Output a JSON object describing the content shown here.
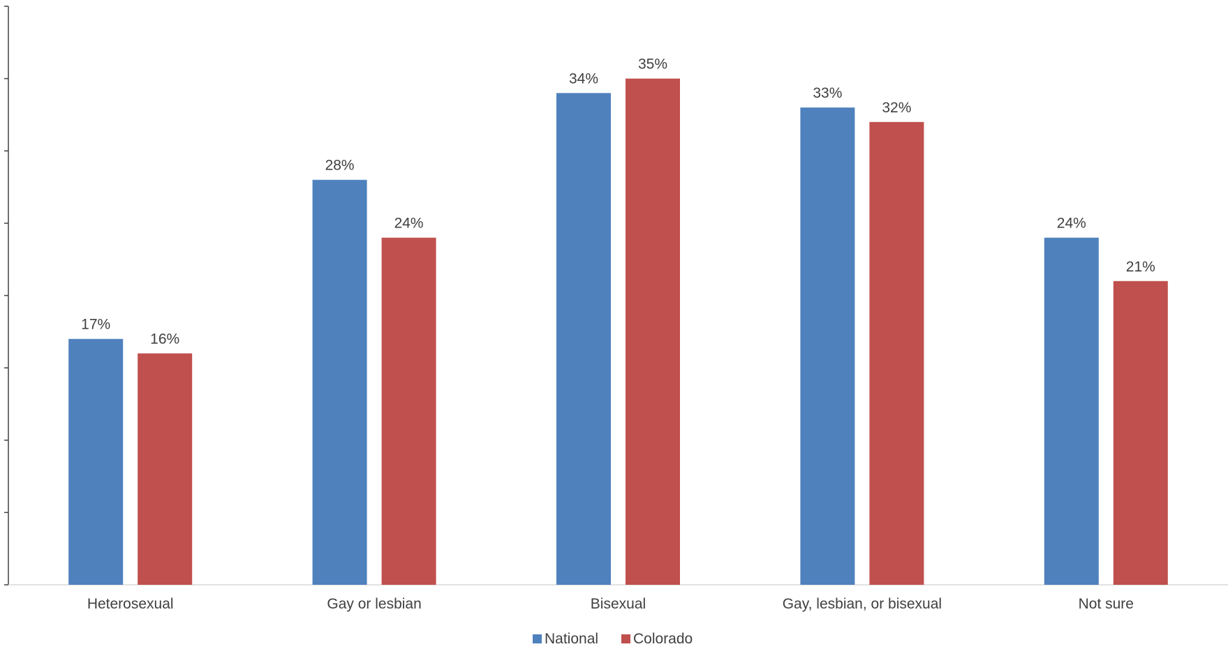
{
  "chart_data": {
    "type": "bar",
    "categories": [
      "Heterosexual",
      "Gay or lesbian",
      "Bisexual",
      "Gay, lesbian, or bisexual",
      "Not sure"
    ],
    "series": [
      {
        "name": "National",
        "values": [
          17,
          28,
          34,
          33,
          24
        ],
        "labels": [
          "17%",
          "28%",
          "34%",
          "33%",
          "24%"
        ],
        "color": "#4f81bd"
      },
      {
        "name": "Colorado",
        "values": [
          16,
          24,
          35,
          32,
          21
        ],
        "labels": [
          "16%",
          "24%",
          "35%",
          "32%",
          "21%"
        ],
        "color": "#c0504d"
      }
    ],
    "ylim": [
      0,
      40
    ],
    "y_tick_step": 5,
    "y_tick_labels_shown": false,
    "grid": false,
    "legend": "bottom-center",
    "title": "",
    "xlabel": "",
    "ylabel": ""
  }
}
